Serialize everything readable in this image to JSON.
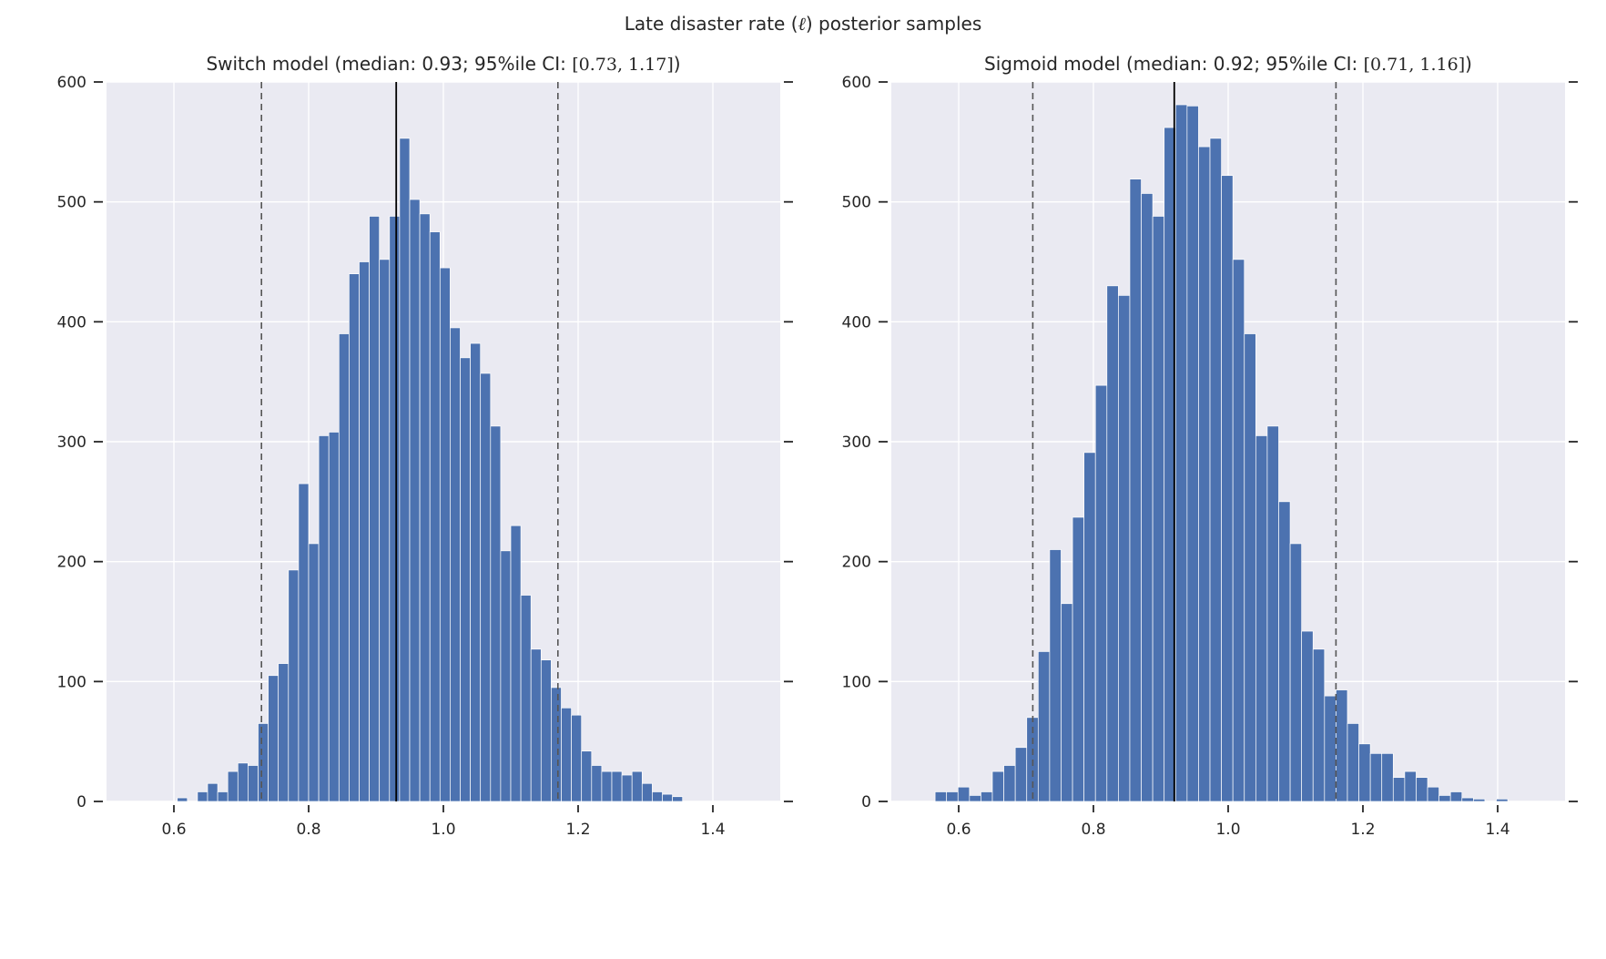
{
  "figure": {
    "title": {
      "prefix": "Late disaster rate (",
      "math": "ℓ",
      "suffix": ") posterior samples"
    }
  },
  "style": {
    "bar_color": "#4c72b0",
    "bg_color": "#eaeaf2",
    "grid_color": "#ffffff",
    "median_color": "#000000",
    "ci_color": "#555555",
    "tick_color": "#262626",
    "bar_edge_color": "#ffffff"
  },
  "chart_data": [
    {
      "type": "bar",
      "name": "switch-model-posterior-histogram",
      "title_prefix": "Switch model (median: 0.93; 95%ile CI: ",
      "title_ci": "[0.73, 1.17]",
      "title_suffix": ")",
      "median": 0.93,
      "ci": [
        0.73,
        1.17
      ],
      "xlim": [
        0.5,
        1.5
      ],
      "ylim": [
        0,
        600
      ],
      "xticks": [
        0.6,
        0.8,
        1.0,
        1.2,
        1.4
      ],
      "yticks": [
        0,
        100,
        200,
        300,
        400,
        500,
        600
      ],
      "bin_start": 0.605,
      "bin_width": 0.015,
      "counts": [
        3,
        0,
        8,
        15,
        8,
        25,
        32,
        30,
        65,
        105,
        115,
        193,
        265,
        215,
        305,
        308,
        390,
        440,
        450,
        488,
        452,
        488,
        553,
        502,
        490,
        475,
        445,
        395,
        370,
        382,
        357,
        313,
        209,
        230,
        172,
        127,
        118,
        95,
        78,
        72,
        42,
        30,
        25,
        25,
        22,
        25,
        15,
        8,
        6,
        4
      ]
    },
    {
      "type": "bar",
      "name": "sigmoid-model-posterior-histogram",
      "title_prefix": "Sigmoid model (median: 0.92; 95%ile CI: ",
      "title_ci": "[0.71, 1.16]",
      "title_suffix": ")",
      "median": 0.92,
      "ci": [
        0.71,
        1.16
      ],
      "xlim": [
        0.5,
        1.5
      ],
      "ylim": [
        0,
        600
      ],
      "xticks": [
        0.6,
        0.8,
        1.0,
        1.2,
        1.4
      ],
      "yticks": [
        0,
        100,
        200,
        300,
        400,
        500,
        600
      ],
      "bin_start": 0.565,
      "bin_width": 0.017,
      "counts": [
        8,
        8,
        12,
        5,
        8,
        25,
        30,
        45,
        70,
        125,
        210,
        165,
        237,
        291,
        347,
        430,
        422,
        519,
        507,
        488,
        562,
        581,
        580,
        546,
        553,
        522,
        452,
        390,
        305,
        313,
        250,
        215,
        142,
        127,
        88,
        93,
        65,
        48,
        40,
        40,
        20,
        25,
        20,
        12,
        5,
        8,
        3,
        2,
        0,
        2
      ]
    }
  ]
}
